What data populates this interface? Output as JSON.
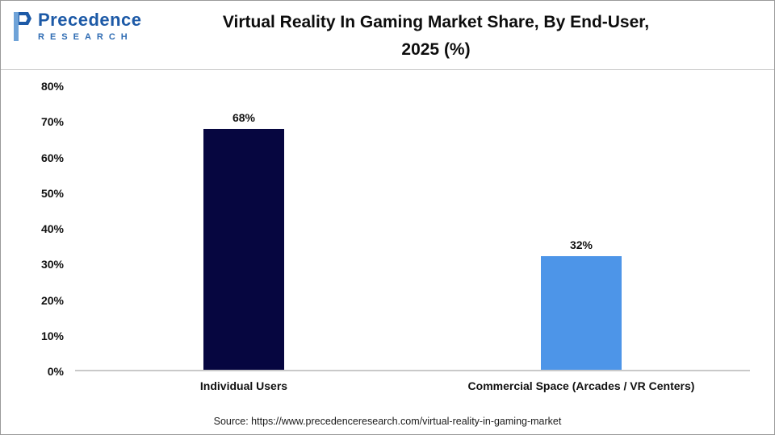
{
  "header": {
    "logo_name": "Precedence",
    "logo_sub": "RESEARCH",
    "title_line1": "Virtual Reality In Gaming Market Share, By End-User,",
    "title_line2": "2025 (%)"
  },
  "chart_data": {
    "type": "bar",
    "title": "Virtual Reality In Gaming Market Share, By End-User, 2025 (%)",
    "categories": [
      "Individual Users",
      "Commercial Space (Arcades / VR Centers)"
    ],
    "values": [
      68,
      32
    ],
    "value_labels": [
      "68%",
      "32%"
    ],
    "bar_colors": [
      "#060640",
      "#4d95e8"
    ],
    "ylim": [
      0,
      80
    ],
    "ytick_step": 10,
    "ytick_labels": [
      "0%",
      "10%",
      "20%",
      "30%",
      "40%",
      "50%",
      "60%",
      "70%",
      "80%"
    ],
    "grid": false,
    "legend": false
  },
  "footer": {
    "source": "Source: https://www.precedenceresearch.com/virtual-reality-in-gaming-market"
  },
  "colors": {
    "brand_blue": "#1d5aa7",
    "bar_dark_navy": "#060640",
    "bar_light_blue": "#4d95e8"
  }
}
